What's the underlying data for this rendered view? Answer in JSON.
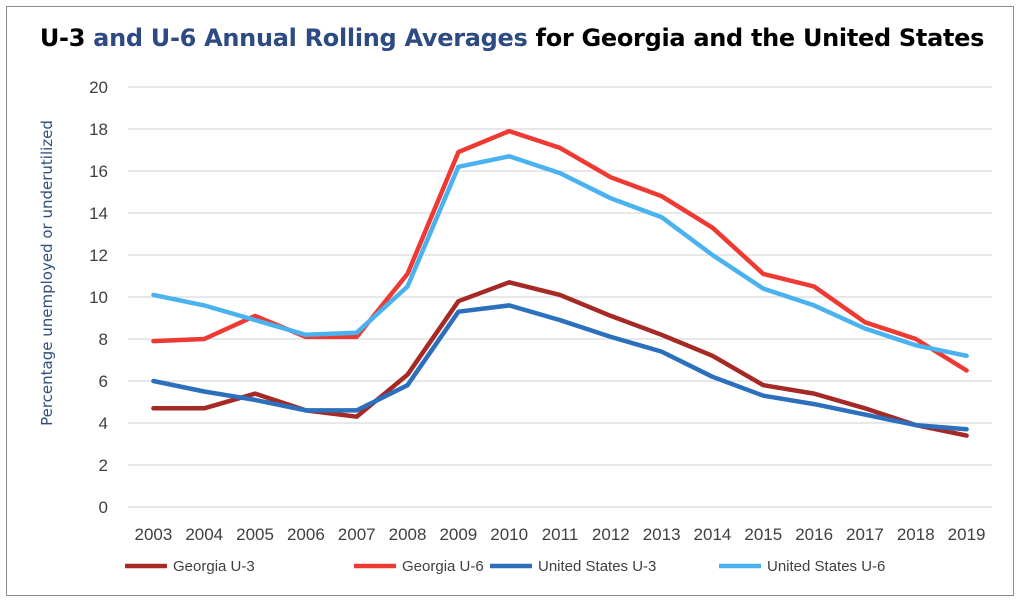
{
  "title_parts": [
    {
      "text": "U-3 ",
      "color": "#000000"
    },
    {
      "text": "and U-6 Annual ",
      "color": "#2e4a82"
    },
    {
      "text": "Rolling Averages",
      "color": "#2e4a82"
    },
    {
      "text": " for Georgia and the United States",
      "color": "#000000"
    }
  ],
  "chart_data": {
    "type": "line",
    "title": "U-3 and U-6 Annual Rolling Averages for Georgia and the United States",
    "xlabel": "",
    "ylabel": "Percentage unemployed or underutilized",
    "ylim": [
      0,
      20
    ],
    "yticks": [
      "0",
      "2",
      "4",
      "6",
      "8",
      "10",
      "12",
      "14",
      "16",
      "18",
      "20"
    ],
    "categories": [
      "2003",
      "2004",
      "2005",
      "2006",
      "2007",
      "2008",
      "2009",
      "2010",
      "2011",
      "2012",
      "2013",
      "2014",
      "2015",
      "2016",
      "2017",
      "2018",
      "2019"
    ],
    "grid": true,
    "legend_position": "bottom",
    "series": [
      {
        "name": "Georgia U-3",
        "color": "#a52a25",
        "values": [
          4.7,
          4.7,
          5.4,
          4.6,
          4.3,
          6.3,
          9.8,
          10.7,
          10.1,
          9.1,
          8.2,
          7.2,
          5.8,
          5.4,
          4.7,
          3.9,
          3.4
        ]
      },
      {
        "name": "Georgia U-6",
        "color": "#ee3a32",
        "values": [
          7.9,
          8.0,
          9.1,
          8.1,
          8.1,
          11.1,
          16.9,
          17.9,
          17.1,
          15.7,
          14.8,
          13.3,
          11.1,
          10.5,
          8.8,
          8.0,
          6.5
        ]
      },
      {
        "name": "United States U-3",
        "color": "#2c6fbd",
        "values": [
          6.0,
          5.5,
          5.1,
          4.6,
          4.6,
          5.8,
          9.3,
          9.6,
          8.9,
          8.1,
          7.4,
          6.2,
          5.3,
          4.9,
          4.4,
          3.9,
          3.7
        ]
      },
      {
        "name": "United States U-6",
        "color": "#4ab2ee",
        "values": [
          10.1,
          9.6,
          8.9,
          8.2,
          8.3,
          10.5,
          16.2,
          16.7,
          15.9,
          14.7,
          13.8,
          12.0,
          10.4,
          9.6,
          8.5,
          7.7,
          7.2
        ]
      }
    ]
  }
}
